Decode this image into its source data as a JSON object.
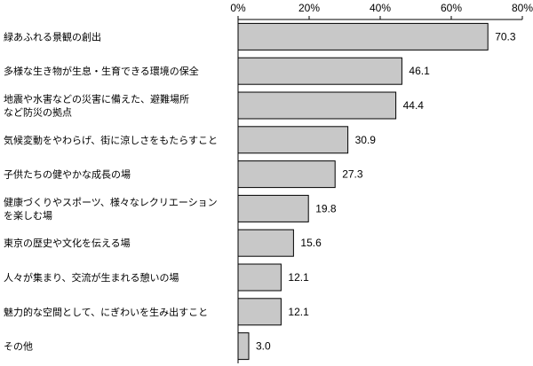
{
  "chart_data": {
    "type": "bar",
    "orientation": "horizontal",
    "categories": [
      [
        "緑あふれる景観の創出"
      ],
      [
        "多様な生き物が生息・生育できる環境の保全"
      ],
      [
        "地震や水害などの災害に備えた、避難場所",
        "など防災の拠点"
      ],
      [
        "気候変動をやわらげ、街に涼しさをもたらすこと"
      ],
      [
        "子供たちの健やかな成長の場"
      ],
      [
        "健康づくりやスポーツ、様々なレクリエーション",
        "を楽しむ場"
      ],
      [
        "東京の歴史や文化を伝える場"
      ],
      [
        "人々が集まり、交流が生まれる憩いの場"
      ],
      [
        "魅力的な空間として、にぎわいを生み出すこと"
      ],
      [
        "その他"
      ]
    ],
    "values": [
      70.3,
      46.1,
      44.4,
      30.9,
      27.3,
      19.8,
      15.6,
      12.1,
      12.1,
      3.0
    ],
    "value_labels": [
      "70.3",
      "46.1",
      "44.4",
      "30.9",
      "27.3",
      "19.8",
      "15.6",
      "12.1",
      "12.1",
      "3.0"
    ],
    "xlim": [
      0,
      80
    ],
    "xticks": [
      0,
      20,
      40,
      60,
      80
    ],
    "xtick_labels": [
      "0%",
      "20%",
      "40%",
      "60%",
      "80%"
    ],
    "x_axis_position": "top",
    "grid": false,
    "bar_color": "#c8c8c8",
    "title": "",
    "xlabel": "",
    "ylabel": ""
  }
}
